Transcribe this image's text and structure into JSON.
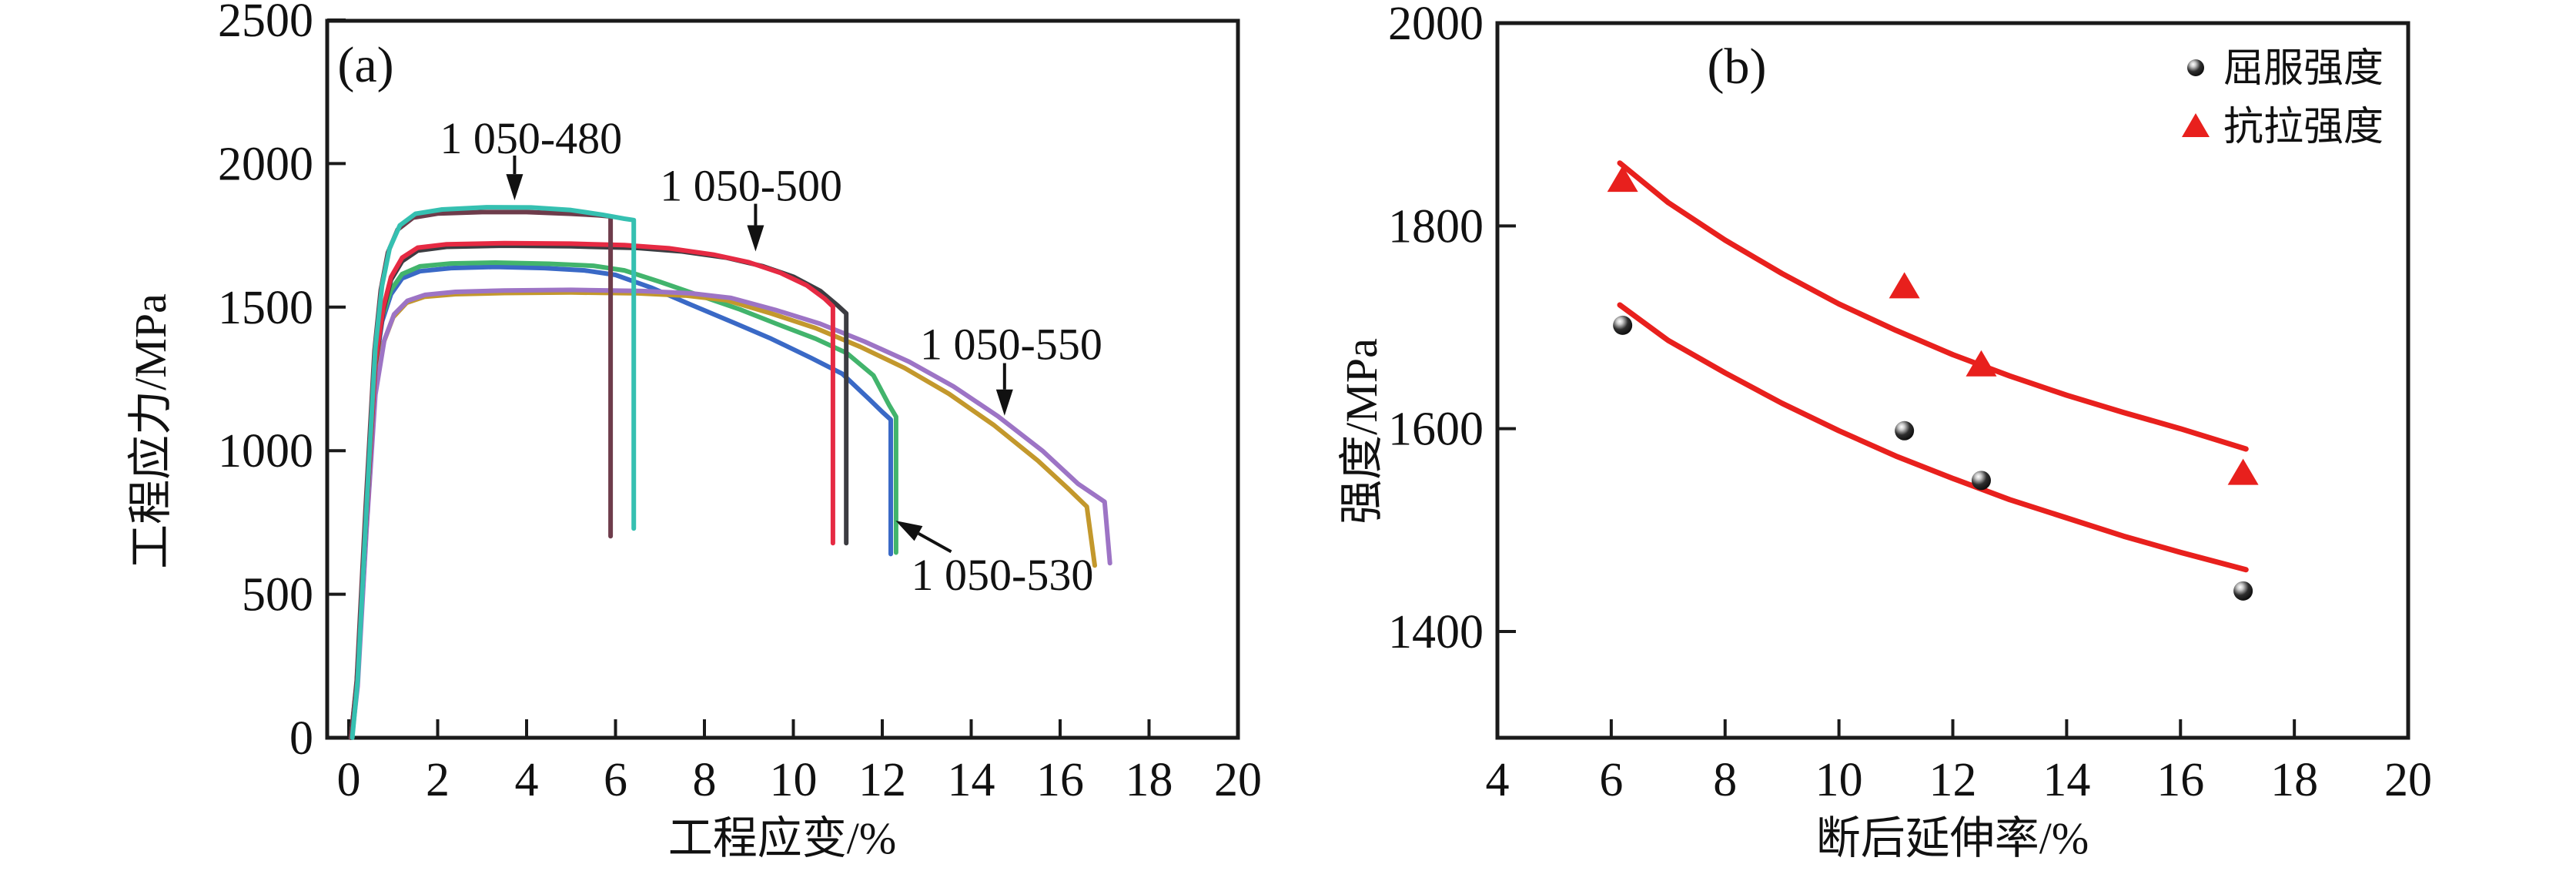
{
  "figure": {
    "background": "#ffffff",
    "frame_color": "#1a1a1a",
    "panel_a_label": "(a)",
    "panel_b_label": "(b)"
  },
  "chart_data": [
    {
      "id": "panel_a",
      "type": "line",
      "panel_label": "(a)",
      "xlabel": "工程应变/%",
      "ylabel": "工程应力/MPa",
      "xlim": [
        -0.5,
        20
      ],
      "ylim": [
        0,
        2500
      ],
      "x_ticks": [
        0,
        2,
        4,
        6,
        8,
        10,
        12,
        14,
        16,
        18,
        20
      ],
      "y_ticks": [
        0,
        500,
        1000,
        1500,
        2000,
        2500
      ],
      "grid": false,
      "series": [
        {
          "name": "1 050-530 specimen 1",
          "color": "#3a69c6",
          "points": [
            [
              0.05,
              0
            ],
            [
              0.18,
              185
            ],
            [
              0.38,
              760
            ],
            [
              0.58,
              1270
            ],
            [
              0.75,
              1450
            ],
            [
              0.95,
              1545
            ],
            [
              1.2,
              1600
            ],
            [
              1.6,
              1625
            ],
            [
              2.3,
              1636
            ],
            [
              3.3,
              1640
            ],
            [
              4.4,
              1636
            ],
            [
              5.3,
              1628
            ],
            [
              6.0,
              1612
            ],
            [
              6.8,
              1568
            ],
            [
              7.7,
              1508
            ],
            [
              8.7,
              1443
            ],
            [
              9.5,
              1390
            ],
            [
              10.4,
              1323
            ],
            [
              11.1,
              1268
            ],
            [
              11.7,
              1180
            ],
            [
              12.0,
              1135
            ],
            [
              12.19,
              1108
            ],
            [
              12.19,
              640
            ]
          ]
        },
        {
          "name": "1 050-530 specimen 2",
          "color": "#42b46c",
          "points": [
            [
              0.05,
              0
            ],
            [
              0.18,
              185
            ],
            [
              0.38,
              765
            ],
            [
              0.58,
              1280
            ],
            [
              0.75,
              1465
            ],
            [
              0.95,
              1560
            ],
            [
              1.2,
              1615
            ],
            [
              1.6,
              1642
            ],
            [
              2.3,
              1652
            ],
            [
              3.3,
              1655
            ],
            [
              4.5,
              1651
            ],
            [
              5.5,
              1644
            ],
            [
              6.2,
              1628
            ],
            [
              7.0,
              1588
            ],
            [
              7.9,
              1540
            ],
            [
              8.8,
              1492
            ],
            [
              9.6,
              1443
            ],
            [
              10.5,
              1390
            ],
            [
              11.2,
              1340
            ],
            [
              11.8,
              1262
            ],
            [
              12.15,
              1160
            ],
            [
              12.31,
              1118
            ],
            [
              12.31,
              645
            ]
          ]
        },
        {
          "name": "1 050-550 specimen 1",
          "color": "#c3982c",
          "points": [
            [
              0.05,
              0
            ],
            [
              0.18,
              180
            ],
            [
              0.38,
              720
            ],
            [
              0.58,
              1190
            ],
            [
              0.78,
              1375
            ],
            [
              1.0,
              1465
            ],
            [
              1.3,
              1515
            ],
            [
              1.7,
              1536
            ],
            [
              2.4,
              1545
            ],
            [
              3.5,
              1549
            ],
            [
              5.0,
              1551
            ],
            [
              6.5,
              1548
            ],
            [
              7.6,
              1540
            ],
            [
              8.5,
              1524
            ],
            [
              9.5,
              1478
            ],
            [
              10.5,
              1427
            ],
            [
              11.5,
              1362
            ],
            [
              12.5,
              1288
            ],
            [
              13.5,
              1198
            ],
            [
              14.5,
              1090
            ],
            [
              15.5,
              965
            ],
            [
              16.2,
              865
            ],
            [
              16.6,
              805
            ],
            [
              16.78,
              600
            ]
          ]
        },
        {
          "name": "1 050-550 specimen 2",
          "color": "#9d74c5",
          "points": [
            [
              0.07,
              0
            ],
            [
              0.2,
              180
            ],
            [
              0.4,
              725
            ],
            [
              0.6,
              1195
            ],
            [
              0.8,
              1385
            ],
            [
              1.02,
              1475
            ],
            [
              1.32,
              1522
            ],
            [
              1.72,
              1543
            ],
            [
              2.4,
              1553
            ],
            [
              3.5,
              1558
            ],
            [
              5.0,
              1560
            ],
            [
              6.6,
              1556
            ],
            [
              7.7,
              1548
            ],
            [
              8.6,
              1532
            ],
            [
              9.6,
              1490
            ],
            [
              10.6,
              1442
            ],
            [
              11.6,
              1380
            ],
            [
              12.6,
              1310
            ],
            [
              13.6,
              1224
            ],
            [
              14.6,
              1120
            ],
            [
              15.6,
              1000
            ],
            [
              16.4,
              885
            ],
            [
              17.0,
              822
            ],
            [
              17.12,
              608
            ]
          ]
        },
        {
          "name": "1 050-500 specimen 1",
          "color": "#3c3c41",
          "points": [
            [
              0.05,
              0
            ],
            [
              0.18,
              190
            ],
            [
              0.4,
              780
            ],
            [
              0.6,
              1300
            ],
            [
              0.78,
              1490
            ],
            [
              0.95,
              1595
            ],
            [
              1.2,
              1660
            ],
            [
              1.55,
              1697
            ],
            [
              2.2,
              1710
            ],
            [
              3.5,
              1714
            ],
            [
              5.0,
              1712
            ],
            [
              6.5,
              1706
            ],
            [
              7.5,
              1694
            ],
            [
              8.5,
              1672
            ],
            [
              9.3,
              1643
            ],
            [
              10.0,
              1606
            ],
            [
              10.6,
              1557
            ],
            [
              11.0,
              1505
            ],
            [
              11.19,
              1478
            ],
            [
              11.19,
              678
            ]
          ]
        },
        {
          "name": "1 050-500 specimen 2",
          "color": "#e62a43",
          "points": [
            [
              0.05,
              0
            ],
            [
              0.18,
              190
            ],
            [
              0.4,
              785
            ],
            [
              0.6,
              1310
            ],
            [
              0.78,
              1500
            ],
            [
              0.95,
              1605
            ],
            [
              1.2,
              1672
            ],
            [
              1.55,
              1707
            ],
            [
              2.2,
              1719
            ],
            [
              3.5,
              1723
            ],
            [
              5.0,
              1721
            ],
            [
              6.2,
              1716
            ],
            [
              7.2,
              1705
            ],
            [
              8.2,
              1683
            ],
            [
              9.0,
              1656
            ],
            [
              9.7,
              1620
            ],
            [
              10.3,
              1576
            ],
            [
              10.7,
              1530
            ],
            [
              10.89,
              1502
            ],
            [
              10.89,
              678
            ]
          ]
        },
        {
          "name": "1 050-480 specimen 1",
          "color": "#6e3c4b",
          "points": [
            [
              0.05,
              0
            ],
            [
              0.18,
              200
            ],
            [
              0.38,
              800
            ],
            [
              0.58,
              1350
            ],
            [
              0.72,
              1560
            ],
            [
              0.88,
              1690
            ],
            [
              1.1,
              1770
            ],
            [
              1.45,
              1812
            ],
            [
              2.0,
              1826
            ],
            [
              3.0,
              1831
            ],
            [
              4.0,
              1831
            ],
            [
              5.0,
              1825
            ],
            [
              5.6,
              1820
            ],
            [
              5.89,
              1816
            ],
            [
              5.89,
              702
            ]
          ]
        },
        {
          "name": "1 050-480 specimen 2",
          "color": "#35c0b1",
          "points": [
            [
              0.08,
              0
            ],
            [
              0.2,
              200
            ],
            [
              0.4,
              800
            ],
            [
              0.6,
              1360
            ],
            [
              0.75,
              1575
            ],
            [
              0.92,
              1705
            ],
            [
              1.15,
              1785
            ],
            [
              1.5,
              1825
            ],
            [
              2.1,
              1840
            ],
            [
              3.1,
              1848
            ],
            [
              4.1,
              1847
            ],
            [
              5.0,
              1838
            ],
            [
              5.7,
              1822
            ],
            [
              6.2,
              1808
            ],
            [
              6.41,
              1803
            ],
            [
              6.41,
              729
            ]
          ]
        }
      ],
      "annotations": [
        {
          "text": "1 050-480",
          "text_xy": [
            4.1,
            2090
          ],
          "arrow_from": [
            3.73,
            2028
          ],
          "arrow_to": [
            3.73,
            1872
          ]
        },
        {
          "text": "1 050-500",
          "text_xy": [
            9.05,
            1925
          ],
          "arrow_from": [
            9.15,
            1860
          ],
          "arrow_to": [
            9.15,
            1694
          ]
        },
        {
          "text": "1 050-550",
          "text_xy": [
            14.9,
            1372
          ],
          "arrow_from": [
            14.75,
            1305
          ],
          "arrow_to": [
            14.75,
            1122
          ]
        },
        {
          "text": "1 050-530",
          "text_xy": [
            14.7,
            568
          ],
          "arrow_from": [
            13.55,
            648
          ],
          "arrow_to": [
            12.3,
            756
          ]
        }
      ]
    },
    {
      "id": "panel_b",
      "type": "scatter",
      "panel_label": "(b)",
      "xlabel": "断后延伸率/%",
      "ylabel": "强度/MPa",
      "xlim": [
        4,
        20
      ],
      "ylim": [
        1295,
        2000
      ],
      "x_ticks": [
        4,
        6,
        8,
        10,
        12,
        14,
        16,
        18,
        20
      ],
      "y_ticks": [
        1400,
        1600,
        1800,
        2000
      ],
      "grid": false,
      "series": [
        {
          "name": "屈服强度",
          "marker": "circle",
          "color": "#131313",
          "points": [
            [
              6.2,
              1702
            ],
            [
              11.15,
              1598
            ],
            [
              12.5,
              1549
            ],
            [
              17.1,
              1440
            ]
          ]
        },
        {
          "name": "抗拉强度",
          "marker": "triangle",
          "color": "#e8201d",
          "points": [
            [
              6.2,
              1845
            ],
            [
              11.15,
              1740
            ],
            [
              12.5,
              1663
            ],
            [
              17.1,
              1556
            ]
          ]
        }
      ],
      "trend_lines": [
        {
          "name": "抗拉强度趋势线",
          "color": "#e8201d",
          "points": [
            [
              6.15,
              1862
            ],
            [
              7,
              1823
            ],
            [
              8,
              1786
            ],
            [
              9,
              1753
            ],
            [
              10,
              1723
            ],
            [
              11,
              1697
            ],
            [
              12,
              1673
            ],
            [
              13,
              1652
            ],
            [
              14,
              1633
            ],
            [
              15,
              1616
            ],
            [
              16,
              1600
            ],
            [
              17.15,
              1580
            ]
          ]
        },
        {
          "name": "屈服强度趋势线",
          "color": "#e8201d",
          "points": [
            [
              6.15,
              1722
            ],
            [
              7,
              1687
            ],
            [
              8,
              1655
            ],
            [
              9,
              1625
            ],
            [
              10,
              1598
            ],
            [
              11,
              1573
            ],
            [
              12,
              1551
            ],
            [
              13,
              1530
            ],
            [
              14,
              1512
            ],
            [
              15,
              1494
            ],
            [
              16,
              1478
            ],
            [
              17.15,
              1461
            ]
          ]
        }
      ],
      "legend": {
        "position": "top-right",
        "entries": [
          {
            "label": "屈服强度",
            "marker": "circle",
            "color": "#131313"
          },
          {
            "label": "抗拉强度",
            "marker": "triangle",
            "color": "#e8201d"
          }
        ]
      }
    }
  ]
}
